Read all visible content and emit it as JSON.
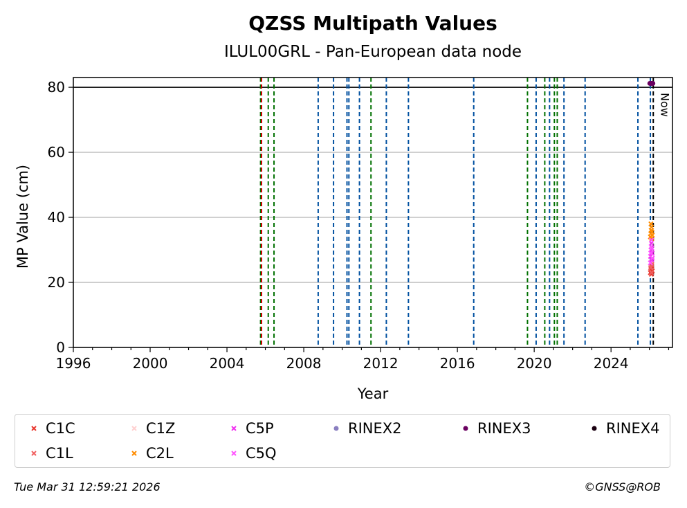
{
  "chart_data": {
    "type": "scatter",
    "title": "QZSS Multipath Values",
    "subtitle": "ILUL00GRL - Pan-European data node",
    "xlabel": "Year",
    "ylabel": "MP Value (cm)",
    "xlim": [
      1996,
      2027.2
    ],
    "ylim": [
      0,
      83
    ],
    "x_ticks": [
      1996,
      2000,
      2004,
      2008,
      2012,
      2016,
      2020,
      2024
    ],
    "y_ticks": [
      0,
      20,
      40,
      60,
      80
    ],
    "grid": "y",
    "reference_line_y": 80,
    "now_label": "Now",
    "now_x": 2026.25,
    "event_lines": [
      {
        "x": 2005.75,
        "color": "#007000"
      },
      {
        "x": 2005.8,
        "color": "#cc0000"
      },
      {
        "x": 2006.15,
        "color": "#007000"
      },
      {
        "x": 2006.45,
        "color": "#007000"
      },
      {
        "x": 2008.75,
        "color": "#0050a0"
      },
      {
        "x": 2009.55,
        "color": "#0050a0"
      },
      {
        "x": 2010.25,
        "color": "#0050a0"
      },
      {
        "x": 2010.35,
        "color": "#0050a0"
      },
      {
        "x": 2010.9,
        "color": "#0050a0"
      },
      {
        "x": 2011.5,
        "color": "#007000"
      },
      {
        "x": 2012.3,
        "color": "#0050a0"
      },
      {
        "x": 2013.45,
        "color": "#0050a0"
      },
      {
        "x": 2016.85,
        "color": "#0050a0"
      },
      {
        "x": 2019.65,
        "color": "#007000"
      },
      {
        "x": 2020.1,
        "color": "#0050a0"
      },
      {
        "x": 2020.55,
        "color": "#007000"
      },
      {
        "x": 2020.8,
        "color": "#0050a0"
      },
      {
        "x": 2021.05,
        "color": "#007000"
      },
      {
        "x": 2021.2,
        "color": "#007000"
      },
      {
        "x": 2021.55,
        "color": "#0050a0"
      },
      {
        "x": 2022.65,
        "color": "#0050a0"
      },
      {
        "x": 2025.4,
        "color": "#0050a0"
      },
      {
        "x": 2026.05,
        "color": "#0050a0"
      },
      {
        "x": 2026.2,
        "color": "#000000"
      }
    ],
    "series": [
      {
        "name": "C1C",
        "color": "#e8362d",
        "marker": "x",
        "x": [
          2026.05,
          2026.08,
          2026.1,
          2026.12,
          2026.15
        ],
        "y": [
          23,
          24,
          22.5,
          25,
          23.5
        ]
      },
      {
        "name": "C1L",
        "color": "#f06060",
        "marker": "x",
        "x": [
          2026.06,
          2026.09,
          2026.11,
          2026.13
        ],
        "y": [
          24.5,
          26,
          23,
          25.5
        ]
      },
      {
        "name": "C1Z",
        "color": "#ffd0d0",
        "marker": "x",
        "x": [],
        "y": []
      },
      {
        "name": "C2L",
        "color": "#ff8c00",
        "marker": "x",
        "x": [
          2026.05,
          2026.07,
          2026.09,
          2026.11,
          2026.13,
          2026.15,
          2026.08,
          2026.12
        ],
        "y": [
          34,
          35,
          36,
          37,
          35.5,
          34.5,
          38,
          33.5
        ]
      },
      {
        "name": "C5P",
        "color": "#f030f0",
        "marker": "x",
        "x": [
          2026.06,
          2026.08,
          2026.1,
          2026.12,
          2026.14
        ],
        "y": [
          28,
          30,
          32,
          27,
          29
        ]
      },
      {
        "name": "C5Q",
        "color": "#ff55ff",
        "marker": "x",
        "x": [
          2026.05,
          2026.07,
          2026.09,
          2026.11,
          2026.13,
          2026.15
        ],
        "y": [
          26,
          29,
          31,
          33,
          30.5,
          27.5
        ]
      },
      {
        "name": "RINEX2",
        "color": "#8a7fc0",
        "marker": "dot",
        "x": [],
        "y": []
      },
      {
        "name": "RINEX3",
        "color": "#6a0060",
        "marker": "dot",
        "x": [
          2026.02,
          2026.06,
          2026.1,
          2026.14,
          2026.18
        ],
        "y": [
          81.2,
          81.2,
          81.2,
          81.2,
          81.2
        ]
      },
      {
        "name": "RINEX4",
        "color": "#1a0010",
        "marker": "dot",
        "x": [],
        "y": []
      }
    ],
    "legend_order": [
      "C1C",
      "C1Z",
      "C5P",
      "RINEX2",
      "RINEX3",
      "RINEX4",
      "C1L",
      "C2L",
      "C5Q"
    ],
    "legend_placement": "bottom"
  },
  "footer": {
    "timestamp": "Tue Mar 31 12:59:21 2026",
    "credit": "©GNSS@ROB"
  }
}
